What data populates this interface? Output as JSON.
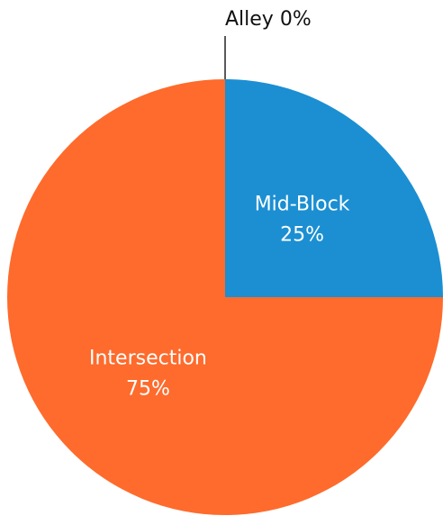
{
  "chart_data": {
    "type": "pie",
    "categories": [
      "Alley",
      "Mid-Block",
      "Intersection"
    ],
    "values": [
      0,
      25,
      75
    ],
    "value_labels": [
      "0%",
      "25%",
      "75%"
    ],
    "colors": [
      "#222222",
      "#1b8fd2",
      "#fe6b2c"
    ]
  }
}
